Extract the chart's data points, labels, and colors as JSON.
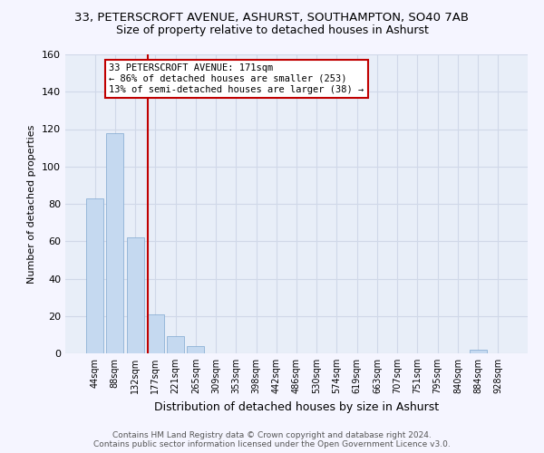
{
  "title": "33, PETERSCROFT AVENUE, ASHURST, SOUTHAMPTON, SO40 7AB",
  "subtitle": "Size of property relative to detached houses in Ashurst",
  "xlabel": "Distribution of detached houses by size in Ashurst",
  "ylabel": "Number of detached properties",
  "bar_labels": [
    "44sqm",
    "88sqm",
    "132sqm",
    "177sqm",
    "221sqm",
    "265sqm",
    "309sqm",
    "353sqm",
    "398sqm",
    "442sqm",
    "486sqm",
    "530sqm",
    "574sqm",
    "619sqm",
    "663sqm",
    "707sqm",
    "751sqm",
    "795sqm",
    "840sqm",
    "884sqm",
    "928sqm"
  ],
  "bar_values": [
    83,
    118,
    62,
    21,
    9,
    4,
    0,
    0,
    0,
    0,
    0,
    0,
    0,
    0,
    0,
    0,
    0,
    0,
    0,
    2,
    0
  ],
  "bar_color": "#c5d9f0",
  "bar_edge_color": "#7fa8d0",
  "vline_color": "#c00000",
  "annotation_line1": "33 PETERSCROFT AVENUE: 171sqm",
  "annotation_line2": "← 86% of detached houses are smaller (253)",
  "annotation_line3": "13% of semi-detached houses are larger (38) →",
  "annotation_box_color": "#c00000",
  "ylim": [
    0,
    160
  ],
  "yticks": [
    0,
    20,
    40,
    60,
    80,
    100,
    120,
    140,
    160
  ],
  "grid_color": "#d0d8e8",
  "bg_color": "#e8eef8",
  "fig_bg_color": "#f5f5ff",
  "footer": "Contains HM Land Registry data © Crown copyright and database right 2024.\nContains public sector information licensed under the Open Government Licence v3.0.",
  "title_fontsize": 9.5,
  "subtitle_fontsize": 9,
  "footer_fontsize": 6.5,
  "ylabel_fontsize": 8,
  "xlabel_fontsize": 9,
  "tick_fontsize": 7,
  "ytick_fontsize": 8,
  "ann_fontsize": 7.5,
  "vline_x_index": 2.62
}
